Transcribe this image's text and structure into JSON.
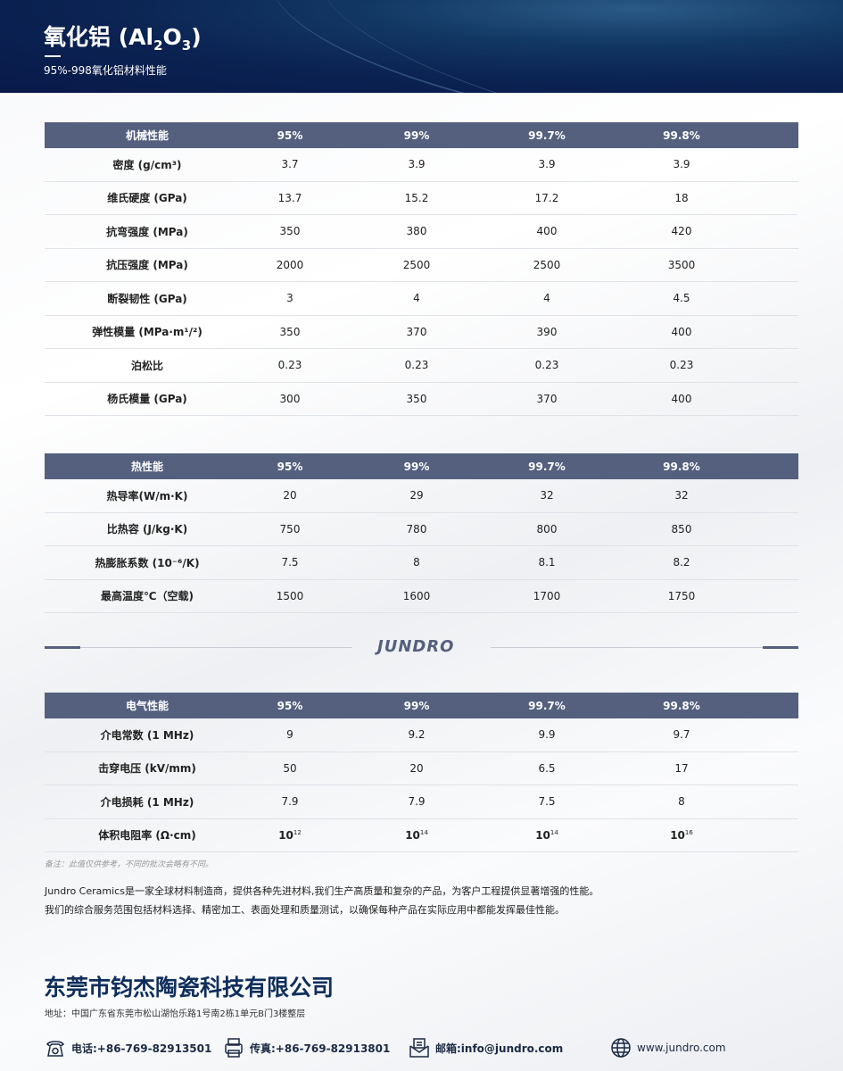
{
  "header": {
    "title": "氧化铝 (Al",
    "sub1": "2",
    "mid": "O",
    "sub2": "3",
    "close": ")",
    "subtitle": "95%-998氧化铝材料性能"
  },
  "tables": [
    {
      "header": [
        "机械性能",
        "95%",
        "99%",
        "99.7%",
        "99.8%"
      ],
      "rows": [
        [
          "密度 (g/cm³)",
          "3.7",
          "3.9",
          "3.9",
          "3.9"
        ],
        [
          "维氏硬度 (GPa)",
          "13.7",
          "15.2",
          "17.2",
          "18"
        ],
        [
          "抗弯强度 (MPa)",
          "350",
          "380",
          "400",
          "420"
        ],
        [
          "抗压强度 (MPa)",
          "2000",
          "2500",
          "2500",
          "3500"
        ],
        [
          "断裂韧性 (GPa)",
          "3",
          "4",
          "4",
          "4.5"
        ],
        [
          "弹性模量 (MPa·m¹/²)",
          "350",
          "370",
          "390",
          "400"
        ],
        [
          "泊松比",
          "0.23",
          "0.23",
          "0.23",
          "0.23"
        ],
        [
          "杨氏模量 (GPa)",
          "300",
          "350",
          "370",
          "400"
        ]
      ]
    },
    {
      "header": [
        "热性能",
        "95%",
        "99%",
        "99.7%",
        "99.8%"
      ],
      "rows": [
        [
          "热导率(W/m·K)",
          "20",
          "29",
          "32",
          "32"
        ],
        [
          "比热容 (J/kg·K)",
          "750",
          "780",
          "800",
          "850"
        ],
        [
          "热膨胀系数 (10⁻⁶/K)",
          "7.5",
          "8",
          "8.1",
          "8.2"
        ],
        [
          "最高温度℃（空载)",
          "1500",
          "1600",
          "1700",
          "1750"
        ]
      ]
    },
    {
      "header": [
        "电气性能",
        "95%",
        "99%",
        "99.7%",
        "99.8%"
      ],
      "rows": [
        [
          "介电常数 (1 MHz)",
          "9",
          "9.2",
          "9.9",
          "9.7"
        ],
        [
          "击穿电压 (kV/mm)",
          "50",
          "20",
          "6.5",
          "17"
        ],
        [
          "介电损耗 (1 MHz)",
          "7.9",
          "7.9",
          "7.5",
          "8"
        ]
      ],
      "resistivity": {
        "label": "体积电阻率 (Ω·cm)",
        "base": "10",
        "exps": [
          "12",
          "14",
          "14",
          "16"
        ]
      }
    }
  ],
  "logo": "JUNDRO",
  "note": "备注：此值仅供参考，不同的批次会略有不同。",
  "paragraph": [
    "Jundro Ceramics是一家全球材料制造商，提供各种先进材料,我们生产高质量和复杂的产品，为客户工程提供显著增强的性能。",
    "我们的综合服务范围包括材料选择、精密加工、表面处理和质量测试，以确保每种产品在实际应用中都能发挥最佳性能。"
  ],
  "footer": {
    "company": "东莞市钧杰陶瓷科技有限公司",
    "address": "地址：中国广东省东莞市松山湖怡乐路1号南2栋1单元B门3楼整层",
    "phone": "电话:+86-769-82913501",
    "fax": "传真:+86-769-82913801",
    "email": "邮箱:info@jundro.com",
    "website": "www.jundro.com"
  },
  "colors": {
    "header_bg": "#0b2352",
    "table_header": "#54607e",
    "company": "#0f2e5c"
  }
}
